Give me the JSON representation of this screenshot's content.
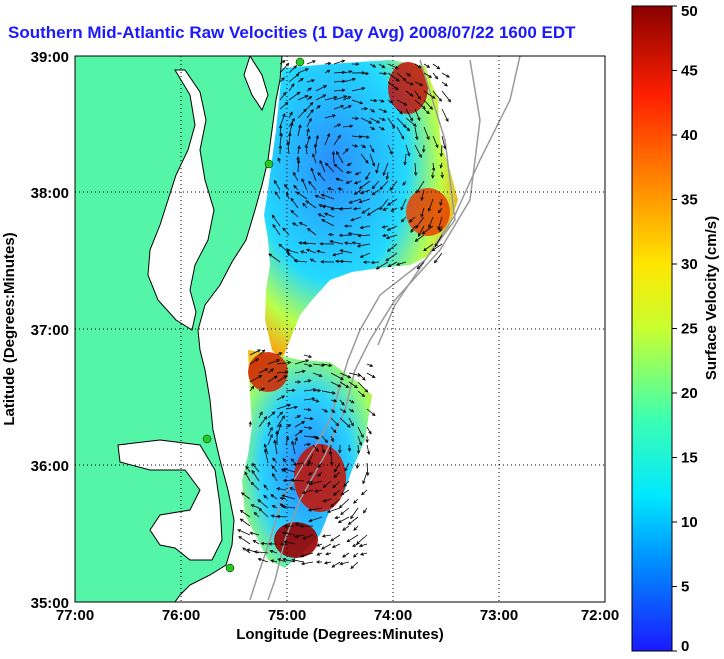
{
  "title": "Southern Mid-Atlantic Raw Velocities (1 Day Avg) 2008/07/22 1600 EDT",
  "x_axis": {
    "label": "Longitude (Degrees:Minutes)",
    "ticks": [
      "77:00",
      "76:00",
      "75:00",
      "74:00",
      "73:00",
      "72:00"
    ]
  },
  "y_axis": {
    "label": "Latitude (Degrees:Minutes)",
    "ticks": [
      "39:00",
      "38:00",
      "37:00",
      "36:00",
      "35:00"
    ]
  },
  "colorbar": {
    "label": "Surface Velocity (cm/s)",
    "ticks": [
      "0",
      "5",
      "10",
      "15",
      "20",
      "25",
      "30",
      "35",
      "40",
      "45",
      "50"
    ],
    "min": 0,
    "max": 50,
    "colors": [
      "#1a1aff",
      "#00c8ff",
      "#3cffb0",
      "#c8ff30",
      "#ffe600",
      "#ff8c00",
      "#ff2000",
      "#8a0000"
    ]
  },
  "colors": {
    "land": "#55f5a8",
    "coast_line": "#000000",
    "bathymetry_line": "#9a9a9a",
    "grid_line": "#000000",
    "station_marker": "#22cc22"
  }
}
